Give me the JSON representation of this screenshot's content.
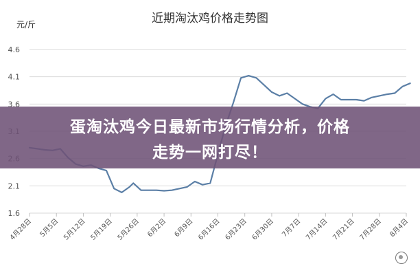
{
  "chart_data": {
    "type": "line",
    "title": "近期淘汰鸡价格走势图",
    "ylabel": "元/斤",
    "xlabel": "",
    "ylim": [
      1.6,
      4.6
    ],
    "yticks": [
      1.6,
      2.1,
      2.6,
      3.1,
      3.6,
      4.1,
      4.6
    ],
    "ytick_labels": [
      "1.6",
      "2.1",
      "2.6",
      "3.1",
      "3.6",
      "4.1",
      "4.6"
    ],
    "xlim": [
      "4月28日",
      "8月4日"
    ],
    "x_tick_labels": [
      "4月28日",
      "5月5日",
      "5月12日",
      "5月19日",
      "5月26日",
      "6月2日",
      "6月9日",
      "6月16日",
      "6月23日",
      "6月30日",
      "7月7日",
      "7月14日",
      "7月21日",
      "7月28日",
      "8月4日"
    ],
    "grid": true,
    "color": "#5b7fa6",
    "series": [
      {
        "x": [
          "4月28日",
          "4月30日",
          "5月2日",
          "5月4日",
          "5月6日",
          "5月8日",
          "5月10日",
          "5月12日",
          "5月14日",
          "5月16日",
          "5月18日",
          "5月20日",
          "5月22日",
          "5月24日",
          "5月25日",
          "5月27日",
          "5月29日",
          "5月31日",
          "6月2日",
          "6月4日",
          "6月6日",
          "6月8日",
          "6月10日",
          "6月12日",
          "6月14日",
          "6月16日",
          "6月18日",
          "6月20日",
          "6月22日",
          "6月24日",
          "6月26日",
          "6月28日",
          "6月30日",
          "7月2日",
          "7月4日",
          "7月6日",
          "7月8日",
          "7月10日",
          "7月12日",
          "7月14日",
          "7月16日",
          "7月18日",
          "7月20日",
          "7月22日",
          "7月24日",
          "7月26日",
          "7月28日",
          "7月30日",
          "8月1日",
          "8月3日",
          "8月5日"
        ],
        "y": [
          2.8,
          2.78,
          2.76,
          2.75,
          2.78,
          2.62,
          2.5,
          2.46,
          2.48,
          2.42,
          2.38,
          2.05,
          1.98,
          2.08,
          2.15,
          2.02,
          2.02,
          2.02,
          2.01,
          2.02,
          2.05,
          2.08,
          2.18,
          2.12,
          2.15,
          2.68,
          3.2,
          3.62,
          4.08,
          4.12,
          4.08,
          3.95,
          3.82,
          3.75,
          3.8,
          3.7,
          3.6,
          3.55,
          3.52,
          3.7,
          3.78,
          3.68,
          3.68,
          3.68,
          3.66,
          3.72,
          3.75,
          3.78,
          3.8,
          3.92,
          3.98
        ]
      }
    ]
  },
  "overlay": {
    "line1": "蛋淘汰鸡今日最新市场行情分析，价格",
    "line2": "走势一网打尽！"
  }
}
